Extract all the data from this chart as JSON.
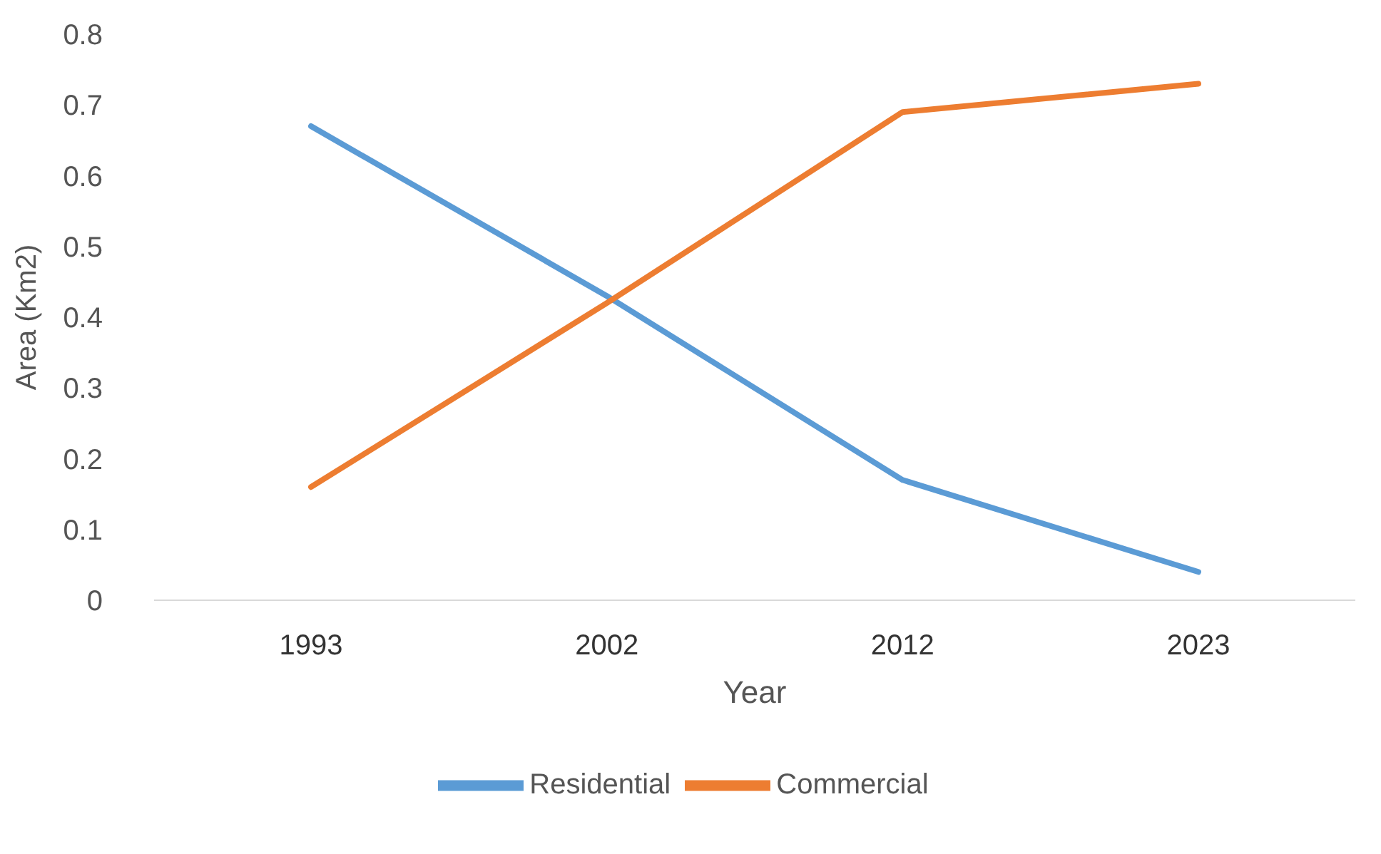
{
  "chart_data": {
    "type": "line",
    "xlabel": "Year",
    "ylabel": "Area (Km2)",
    "categories": [
      "1993",
      "2002",
      "2012",
      "2023"
    ],
    "series": [
      {
        "name": "Residential",
        "color": "#5b9bd5",
        "values": [
          0.67,
          0.43,
          0.17,
          0.04
        ]
      },
      {
        "name": "Commercial",
        "color": "#ed7d31",
        "values": [
          0.16,
          0.42,
          0.69,
          0.73
        ]
      }
    ],
    "ylim": [
      0,
      0.8
    ],
    "yticks": [
      0,
      0.1,
      0.2,
      0.3,
      0.4,
      0.5,
      0.6,
      0.7,
      0.8
    ],
    "legend": "bottom",
    "marker": "none",
    "line_style": "solid"
  }
}
